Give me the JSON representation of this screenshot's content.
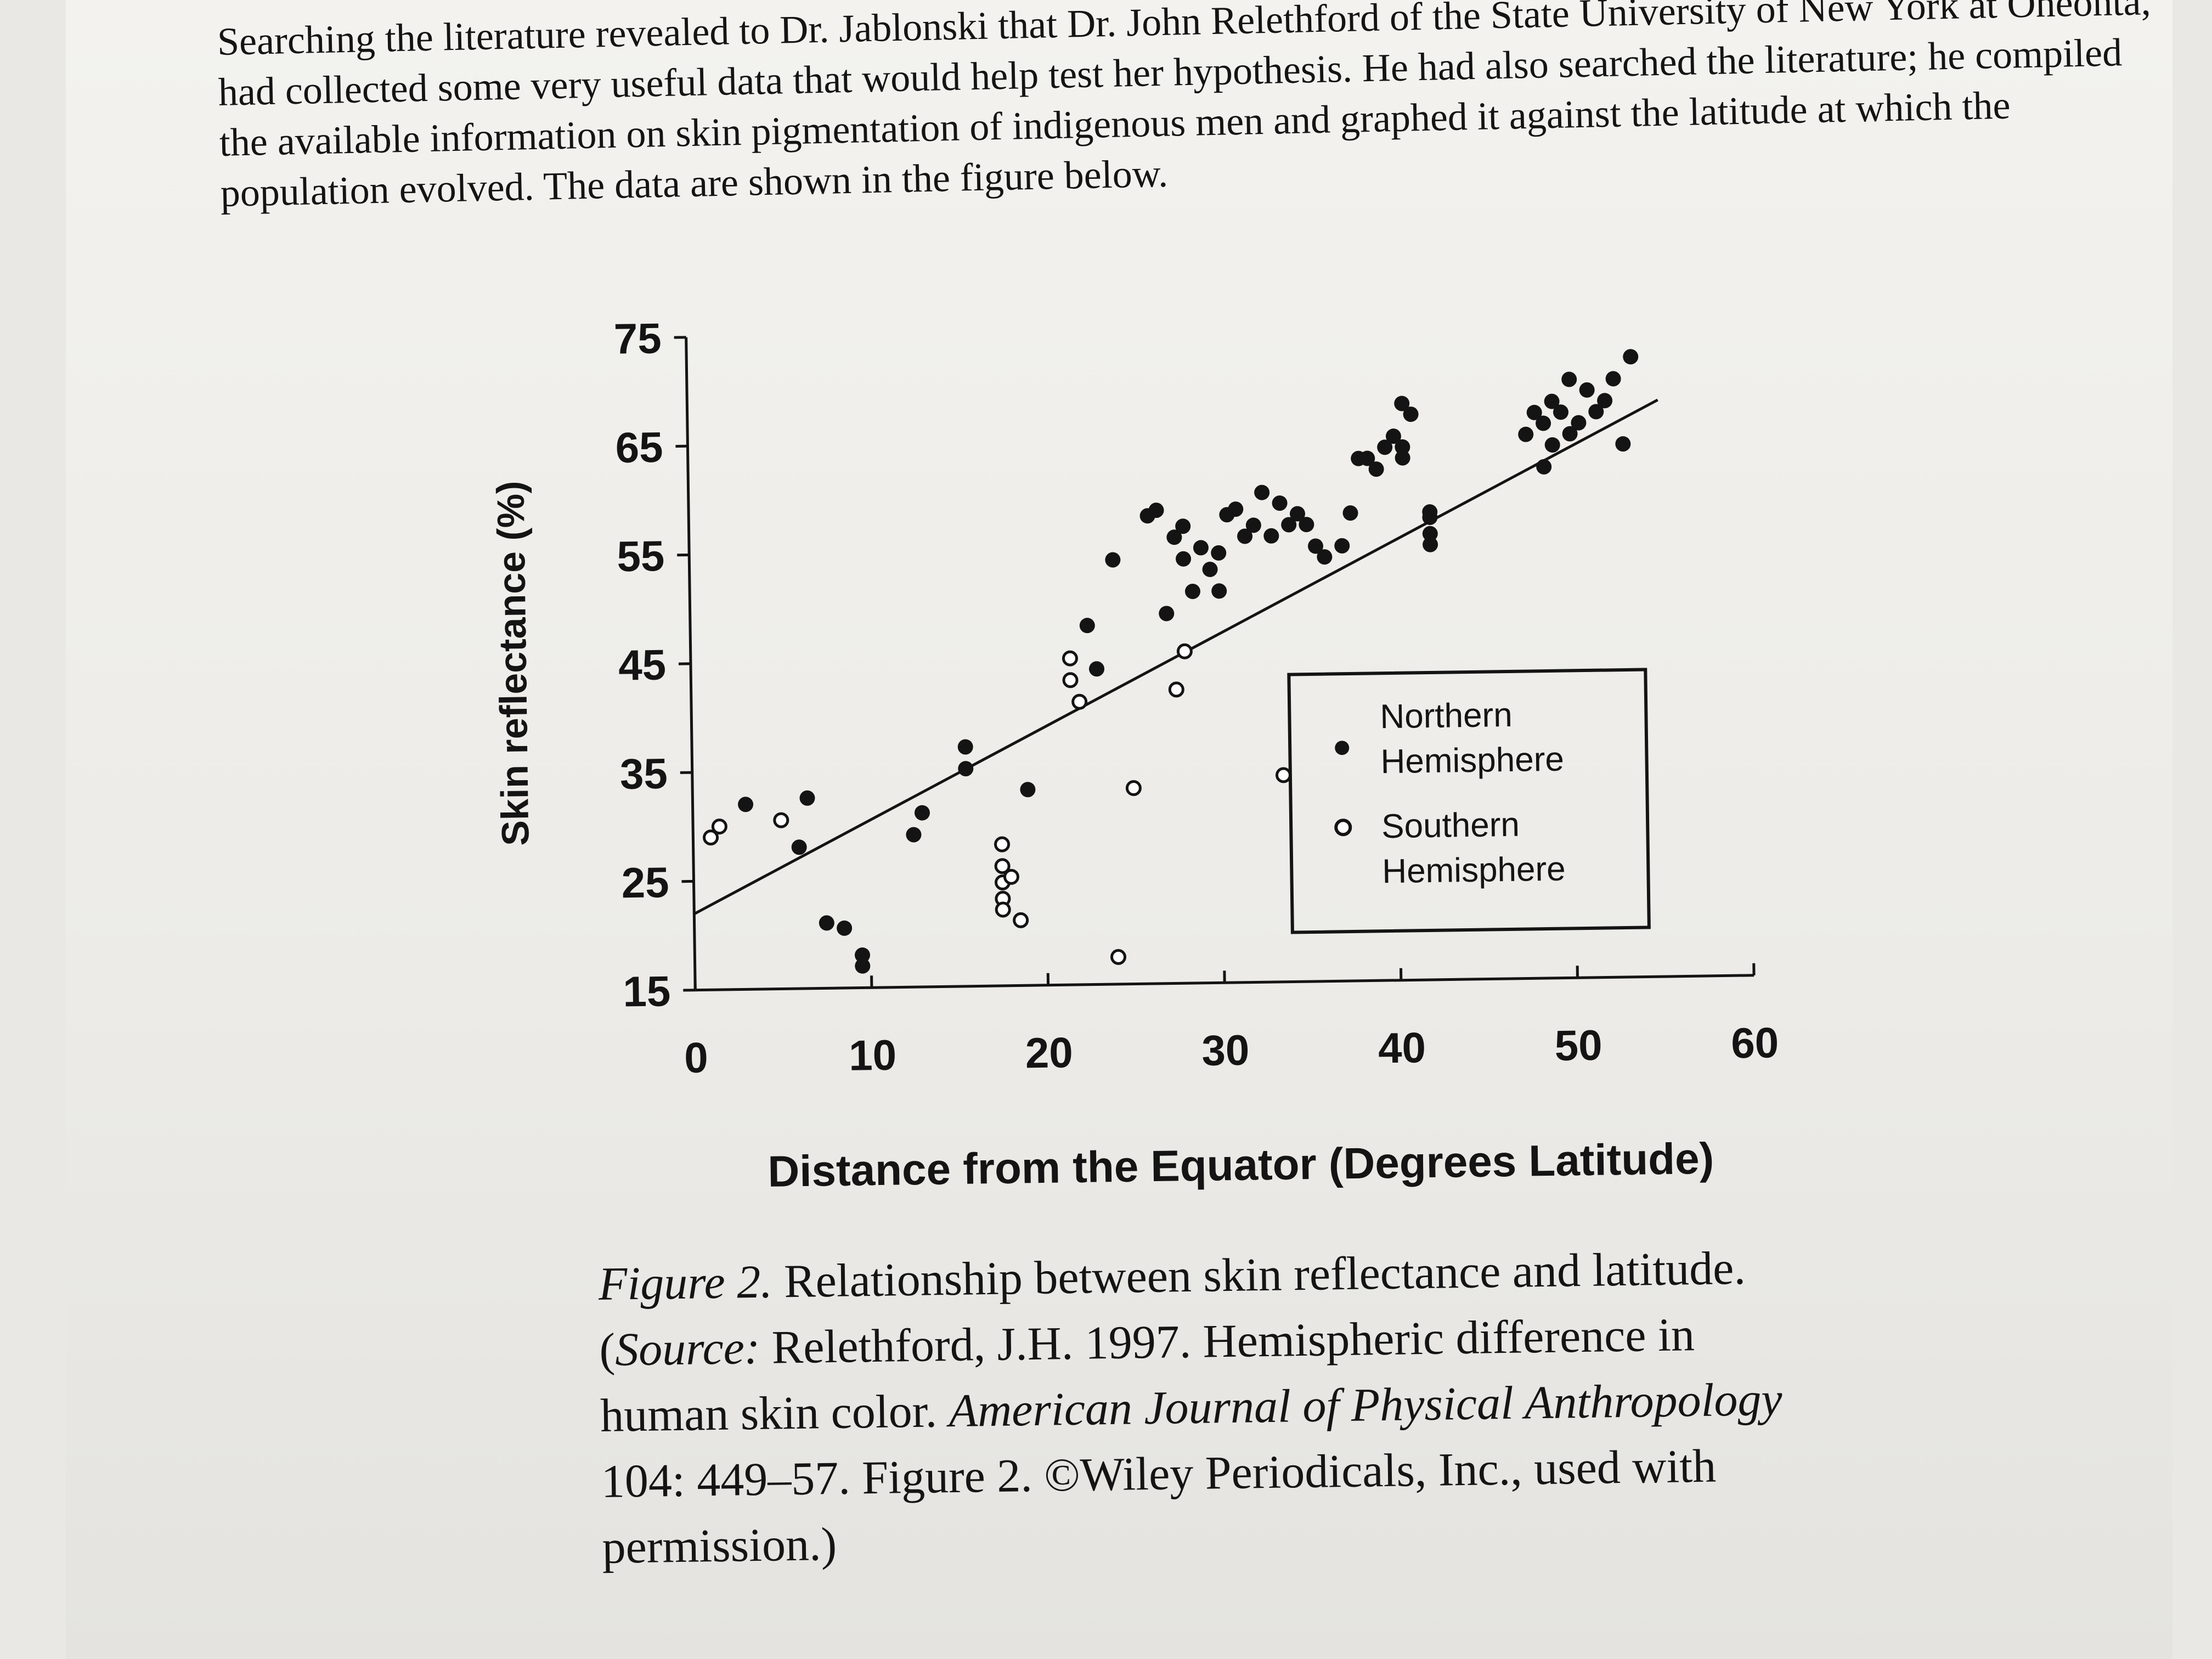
{
  "paragraph": {
    "text": "Searching the literature revealed to Dr. Jablonski that Dr. John Relethford of the State University of New York at Oneonta, had collected some very useful data that would help test her hypothesis. He had also searched the literature; he compiled the available information on skin pigmentation of indigenous men and graphed it against the latitude at which the population evolved. The data are shown in the figure below."
  },
  "caption": {
    "figure_label": "Figure 2.",
    "title": "Relationship between skin reflectance and latitude.",
    "source_open": "(",
    "source_label": "Source:",
    "source_text": "Relethford, J.H. 1997. Hemispheric difference in human skin color.",
    "journal": "American Journal of Physical Anthropology",
    "source_tail": "104: 449–57. Figure 2. ©Wiley Periodicals, Inc., used with permission.)"
  },
  "chart_data": {
    "type": "scatter",
    "xlabel": "Distance from the Equator (Degrees Latitude)",
    "ylabel": "Skin reflectance (%)",
    "xlim": [
      0,
      60
    ],
    "ylim": [
      15,
      75
    ],
    "xticks": [
      0,
      10,
      20,
      30,
      40,
      50,
      60
    ],
    "yticks": [
      15,
      25,
      35,
      45,
      55,
      65,
      75
    ],
    "grid": false,
    "legend_position": "right",
    "colors": {
      "northern": "#141414",
      "southern": "#ffffff",
      "line": "#141414"
    },
    "series": [
      {
        "name": "Northern Hemisphere",
        "marker": "filled",
        "points": [
          [
            3,
            32
          ],
          [
            6.5,
            32.5
          ],
          [
            6,
            28
          ],
          [
            7.5,
            21
          ],
          [
            8.5,
            20.5
          ],
          [
            9.5,
            18
          ],
          [
            9.5,
            17
          ],
          [
            12.5,
            29
          ],
          [
            13,
            31
          ],
          [
            15.5,
            35
          ],
          [
            15.5,
            37
          ],
          [
            19,
            33
          ],
          [
            22.5,
            48
          ],
          [
            23,
            44
          ],
          [
            24,
            54
          ],
          [
            26,
            58
          ],
          [
            26.5,
            58.5
          ],
          [
            27,
            49
          ],
          [
            27.5,
            56
          ],
          [
            28,
            57
          ],
          [
            28,
            54
          ],
          [
            28.5,
            51
          ],
          [
            29,
            55
          ],
          [
            29.5,
            53
          ],
          [
            30,
            51
          ],
          [
            30,
            54.5
          ],
          [
            30.5,
            58
          ],
          [
            31,
            58.5
          ],
          [
            31.5,
            56
          ],
          [
            32,
            57
          ],
          [
            32.5,
            60
          ],
          [
            33,
            56
          ],
          [
            33.5,
            59
          ],
          [
            34,
            57
          ],
          [
            34.5,
            58
          ],
          [
            35,
            57
          ],
          [
            35.5,
            55
          ],
          [
            36,
            54
          ],
          [
            37,
            55
          ],
          [
            37.5,
            58
          ],
          [
            38,
            63
          ],
          [
            38.5,
            63
          ],
          [
            39,
            62
          ],
          [
            39.5,
            64
          ],
          [
            40,
            65
          ],
          [
            40.5,
            63
          ],
          [
            40.5,
            64
          ],
          [
            40.5,
            68
          ],
          [
            41,
            67
          ],
          [
            42,
            57.5
          ],
          [
            42,
            56
          ],
          [
            42,
            55
          ],
          [
            42,
            58
          ],
          [
            47.5,
            65
          ],
          [
            48,
            67
          ],
          [
            48.5,
            66
          ],
          [
            49,
            68
          ],
          [
            49.5,
            67
          ],
          [
            50,
            70
          ],
          [
            50,
            65
          ],
          [
            50.5,
            66
          ],
          [
            51,
            69
          ],
          [
            51.5,
            67
          ],
          [
            52,
            68
          ],
          [
            52.5,
            70
          ],
          [
            53,
            64
          ],
          [
            53.5,
            72
          ],
          [
            49,
            64
          ],
          [
            48.5,
            62
          ]
        ]
      },
      {
        "name": "Southern Hemisphere",
        "marker": "open",
        "points": [
          [
            1,
            29
          ],
          [
            1.5,
            30
          ],
          [
            5,
            30.5
          ],
          [
            17.5,
            28
          ],
          [
            17.5,
            26
          ],
          [
            17.5,
            24.5
          ],
          [
            17.5,
            23
          ],
          [
            17.5,
            22
          ],
          [
            18,
            25
          ],
          [
            18.5,
            21
          ],
          [
            21.5,
            43
          ],
          [
            21.5,
            45
          ],
          [
            22,
            41
          ],
          [
            24,
            17.5
          ],
          [
            25,
            33
          ],
          [
            27.5,
            42
          ],
          [
            28,
            45.5
          ],
          [
            33.5,
            34
          ]
        ]
      }
    ],
    "trendline": {
      "x": [
        0,
        55
      ],
      "y": [
        22,
        68
      ]
    }
  },
  "legend": {
    "northern_line1": "Northern",
    "northern_line2": "Hemisphere",
    "southern_line1": "Southern",
    "southern_line2": "Hemisphere"
  }
}
